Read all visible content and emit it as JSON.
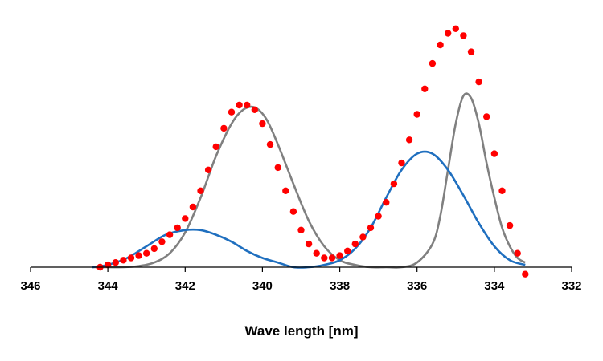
{
  "chart_data": {
    "type": "scatter",
    "title": "",
    "xlabel": "Wave length [nm]",
    "ylabel": "",
    "x_reversed": true,
    "xlim": [
      346,
      332
    ],
    "ylim": [
      0,
      1.05
    ],
    "x_ticks": [
      "346",
      "344",
      "342",
      "340",
      "338",
      "336",
      "334",
      "332"
    ],
    "grid": false,
    "legend": "none",
    "series": [
      {
        "kind": "points",
        "color": "#ff0000",
        "x": [
          344.2,
          344.0,
          343.8,
          343.6,
          343.4,
          343.2,
          343.0,
          342.8,
          342.6,
          342.4,
          342.2,
          342.0,
          341.8,
          341.6,
          341.4,
          341.2,
          341.0,
          340.8,
          340.6,
          340.4,
          340.2,
          340.0,
          339.8,
          339.6,
          339.4,
          339.2,
          339.0,
          338.8,
          338.6,
          338.4,
          338.2,
          338.0,
          337.8,
          337.6,
          337.4,
          337.2,
          337.0,
          336.8,
          336.6,
          336.4,
          336.2,
          336.0,
          335.8,
          335.6,
          335.4,
          335.2,
          335.0,
          334.8,
          334.6,
          334.4,
          334.2,
          334.0,
          333.8,
          333.6,
          333.4,
          333.2
        ],
        "y": [
          0.0,
          0.01,
          0.02,
          0.03,
          0.04,
          0.05,
          0.06,
          0.08,
          0.11,
          0.14,
          0.17,
          0.21,
          0.26,
          0.33,
          0.42,
          0.52,
          0.6,
          0.67,
          0.7,
          0.7,
          0.68,
          0.62,
          0.53,
          0.43,
          0.33,
          0.24,
          0.16,
          0.1,
          0.06,
          0.04,
          0.04,
          0.05,
          0.07,
          0.1,
          0.13,
          0.17,
          0.22,
          0.28,
          0.36,
          0.45,
          0.55,
          0.66,
          0.77,
          0.88,
          0.96,
          1.01,
          1.03,
          1.0,
          0.93,
          0.8,
          0.65,
          0.49,
          0.33,
          0.18,
          0.06,
          -0.03
        ]
      },
      {
        "kind": "curve",
        "color": "#808080",
        "x": [
          344.4,
          344.0,
          343.6,
          343.2,
          342.8,
          342.4,
          342.0,
          341.6,
          341.2,
          340.8,
          340.5,
          340.2,
          339.9,
          339.6,
          339.2,
          338.8,
          338.4,
          338.0,
          337.6,
          337.2,
          336.8,
          336.4,
          336.0,
          335.6,
          335.4,
          335.2,
          335.0,
          334.8,
          334.6,
          334.4,
          334.2,
          334.0,
          333.8,
          333.6,
          333.4,
          333.2
        ],
        "y": [
          0.0,
          0.0,
          0.0,
          0.005,
          0.02,
          0.06,
          0.15,
          0.3,
          0.48,
          0.62,
          0.68,
          0.69,
          0.64,
          0.53,
          0.36,
          0.2,
          0.09,
          0.03,
          0.01,
          0.0,
          0.0,
          0.0,
          0.02,
          0.1,
          0.22,
          0.42,
          0.62,
          0.74,
          0.73,
          0.62,
          0.45,
          0.3,
          0.17,
          0.09,
          0.04,
          0.02
        ]
      },
      {
        "kind": "curve",
        "color": "#1f6fbf",
        "x": [
          344.4,
          344.0,
          343.5,
          343.0,
          342.5,
          342.0,
          341.6,
          341.2,
          340.8,
          340.4,
          340.0,
          339.6,
          339.2,
          338.8,
          338.4,
          338.0,
          337.6,
          337.2,
          336.8,
          336.4,
          336.0,
          335.6,
          335.2,
          334.8,
          334.4,
          334.0,
          333.6,
          333.2
        ],
        "y": [
          0.0,
          0.01,
          0.04,
          0.09,
          0.14,
          0.16,
          0.16,
          0.14,
          0.11,
          0.07,
          0.04,
          0.02,
          0.0,
          0.0,
          0.01,
          0.03,
          0.08,
          0.17,
          0.3,
          0.42,
          0.49,
          0.49,
          0.42,
          0.31,
          0.19,
          0.09,
          0.03,
          0.01
        ]
      }
    ]
  }
}
